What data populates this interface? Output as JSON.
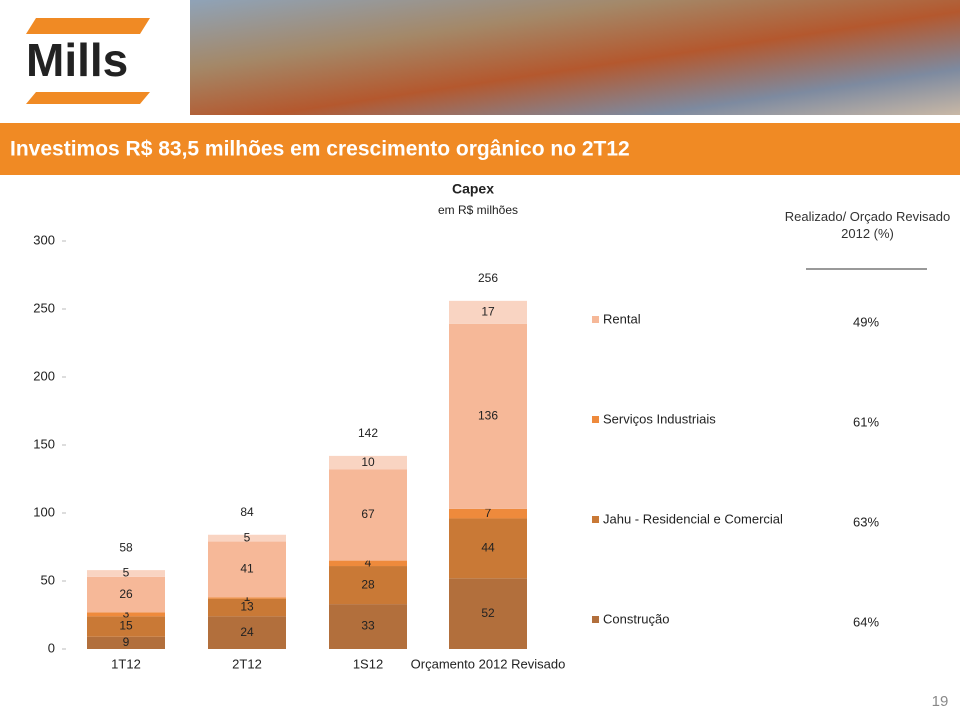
{
  "slide": {
    "logo": "Mills",
    "title": "Investimos R$ 83,5 milhões em crescimento orgânico no 2T12",
    "page": "19"
  },
  "chart_data": {
    "type": "stacked-bar",
    "title": "Capex",
    "subtitle": "em R$ milhões",
    "categories": [
      "1T12",
      "2T12",
      "1S12",
      "Orçamento 2012 Revisado"
    ],
    "series": [
      {
        "name": "Construção",
        "color": "#b26f3c",
        "values": [
          9,
          24,
          33,
          52
        ]
      },
      {
        "name": "Jahu - Residencial e Comercial",
        "color": "#c97936",
        "values": [
          15,
          13,
          28,
          44
        ]
      },
      {
        "name": "Serviços Industriais",
        "color": "#ee8a3c",
        "values": [
          3,
          1,
          4,
          7
        ]
      },
      {
        "name": "Rental",
        "color": "#f6b898",
        "values": [
          26,
          41,
          67,
          136
        ]
      },
      {
        "color": "#f9d4c2",
        "values": [
          5,
          5,
          10,
          17
        ]
      }
    ],
    "totals": [
      58,
      84,
      142,
      256
    ],
    "ylim": [
      0,
      300
    ],
    "yticks": [
      0,
      50,
      100,
      150,
      200,
      250,
      300
    ],
    "realizado_header": "Realizado/ Orçado Revisado 2012 (%)",
    "realizado": [
      {
        "value": 64,
        "label": "64%"
      },
      {
        "value": 63,
        "label": "63%"
      },
      {
        "value": 61,
        "label": "61%"
      },
      {
        "value": 49,
        "label": "49%"
      }
    ]
  }
}
